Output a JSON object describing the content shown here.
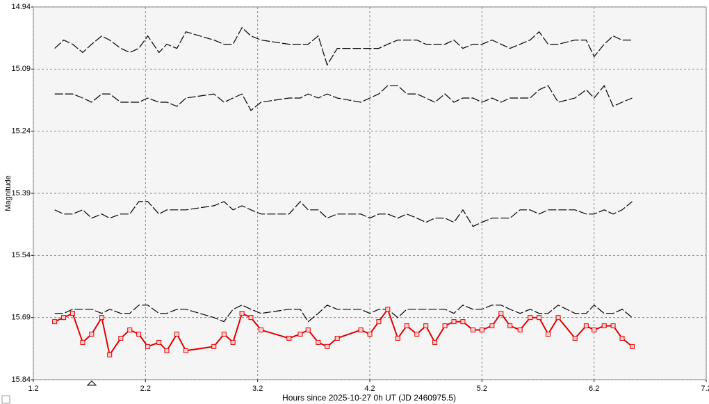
{
  "chart_data": {
    "type": "line",
    "xlabel": "Hours since 2025-10-27 0h UT (JD 2460975.5)",
    "ylabel": "Magnitude",
    "xlim": [
      1.2,
      7.2
    ],
    "xticks": [
      1.2,
      2.2,
      3.2,
      4.2,
      5.2,
      6.2,
      7.2
    ],
    "ylim": [
      15.84,
      14.94
    ],
    "yticks": [
      14.94,
      15.09,
      15.24,
      15.39,
      15.54,
      15.69,
      15.84
    ],
    "grid": true,
    "x": [
      1.39,
      1.47,
      1.55,
      1.64,
      1.72,
      1.81,
      1.88,
      1.98,
      2.06,
      2.14,
      2.22,
      2.32,
      2.39,
      2.48,
      2.56,
      2.81,
      2.9,
      2.98,
      3.06,
      3.14,
      3.23,
      3.48,
      3.58,
      3.65,
      3.74,
      3.82,
      3.91,
      4.12,
      4.2,
      4.28,
      4.36,
      4.45,
      4.53,
      4.62,
      4.7,
      4.78,
      4.87,
      4.95,
      5.03,
      5.12,
      5.2,
      5.29,
      5.37,
      5.45,
      5.54,
      5.63,
      5.71,
      5.79,
      5.88,
      6.03,
      6.13,
      6.2,
      6.29,
      6.37,
      6.45,
      6.54
    ],
    "series": [
      {
        "color": "#000000",
        "marker": "none",
        "dashed": true,
        "values": [
          15.04,
          15.02,
          15.03,
          15.05,
          15.03,
          15.01,
          15.02,
          15.04,
          15.05,
          15.04,
          15.01,
          15.05,
          15.03,
          15.04,
          15.0,
          15.02,
          15.03,
          15.03,
          14.99,
          15.01,
          15.02,
          15.03,
          15.03,
          15.03,
          15.01,
          15.08,
          15.04,
          15.04,
          15.04,
          15.04,
          15.03,
          15.02,
          15.02,
          15.02,
          15.03,
          15.03,
          15.03,
          15.02,
          15.04,
          15.03,
          15.03,
          15.02,
          15.03,
          15.04,
          15.03,
          15.02,
          15.0,
          15.03,
          15.03,
          15.02,
          15.02,
          15.06,
          15.03,
          15.01,
          15.02,
          15.02
        ]
      },
      {
        "color": "#000000",
        "marker": "none",
        "dashed": true,
        "values": [
          15.15,
          15.15,
          15.15,
          15.16,
          15.17,
          15.15,
          15.15,
          15.17,
          15.17,
          15.17,
          15.16,
          15.17,
          15.17,
          15.18,
          15.16,
          15.15,
          15.17,
          15.16,
          15.15,
          15.19,
          15.17,
          15.16,
          15.16,
          15.15,
          15.16,
          15.15,
          15.16,
          15.17,
          15.16,
          15.15,
          15.13,
          15.13,
          15.15,
          15.15,
          15.16,
          15.17,
          15.15,
          15.17,
          15.16,
          15.16,
          15.17,
          15.16,
          15.17,
          15.16,
          15.16,
          15.16,
          15.14,
          15.13,
          15.17,
          15.16,
          15.14,
          15.16,
          15.13,
          15.18,
          15.17,
          15.16
        ]
      },
      {
        "color": "#000000",
        "marker": "none",
        "dashed": true,
        "values": [
          15.43,
          15.44,
          15.44,
          15.43,
          15.45,
          15.44,
          15.45,
          15.44,
          15.44,
          15.41,
          15.41,
          15.44,
          15.43,
          15.43,
          15.43,
          15.42,
          15.41,
          15.43,
          15.42,
          15.43,
          15.44,
          15.44,
          15.41,
          15.43,
          15.43,
          15.45,
          15.44,
          15.44,
          15.45,
          15.44,
          15.44,
          15.45,
          15.44,
          15.45,
          15.46,
          15.45,
          15.45,
          15.46,
          15.43,
          15.47,
          15.46,
          15.45,
          15.45,
          15.45,
          15.43,
          15.43,
          15.44,
          15.43,
          15.43,
          15.43,
          15.44,
          15.44,
          15.43,
          15.44,
          15.43,
          15.41
        ]
      },
      {
        "color": "#000000",
        "marker": "none",
        "dashed": true,
        "values": [
          15.68,
          15.68,
          15.67,
          15.67,
          15.67,
          15.68,
          15.67,
          15.68,
          15.68,
          15.66,
          15.66,
          15.68,
          15.68,
          15.67,
          15.67,
          15.69,
          15.7,
          15.67,
          15.66,
          15.67,
          15.68,
          15.67,
          15.67,
          15.7,
          15.68,
          15.66,
          15.67,
          15.67,
          15.68,
          15.67,
          15.67,
          15.69,
          15.67,
          15.67,
          15.67,
          15.67,
          15.67,
          15.68,
          15.66,
          15.67,
          15.67,
          15.66,
          15.66,
          15.67,
          15.68,
          15.67,
          15.68,
          15.68,
          15.66,
          15.68,
          15.68,
          15.66,
          15.68,
          15.68,
          15.67,
          15.69
        ]
      },
      {
        "color": "#e00000",
        "marker": "square",
        "dashed": false,
        "values": [
          15.7,
          15.69,
          15.68,
          15.75,
          15.73,
          15.69,
          15.78,
          15.74,
          15.72,
          15.73,
          15.76,
          15.75,
          15.77,
          15.73,
          15.77,
          15.76,
          15.73,
          15.75,
          15.68,
          15.69,
          15.72,
          15.74,
          15.73,
          15.72,
          15.75,
          15.76,
          15.74,
          15.72,
          15.73,
          15.7,
          15.67,
          15.74,
          15.71,
          15.73,
          15.71,
          15.75,
          15.71,
          15.7,
          15.7,
          15.72,
          15.72,
          15.71,
          15.68,
          15.71,
          15.72,
          15.69,
          15.69,
          15.73,
          15.69,
          15.74,
          15.71,
          15.72,
          15.71,
          15.71,
          15.74,
          15.76
        ]
      }
    ]
  }
}
